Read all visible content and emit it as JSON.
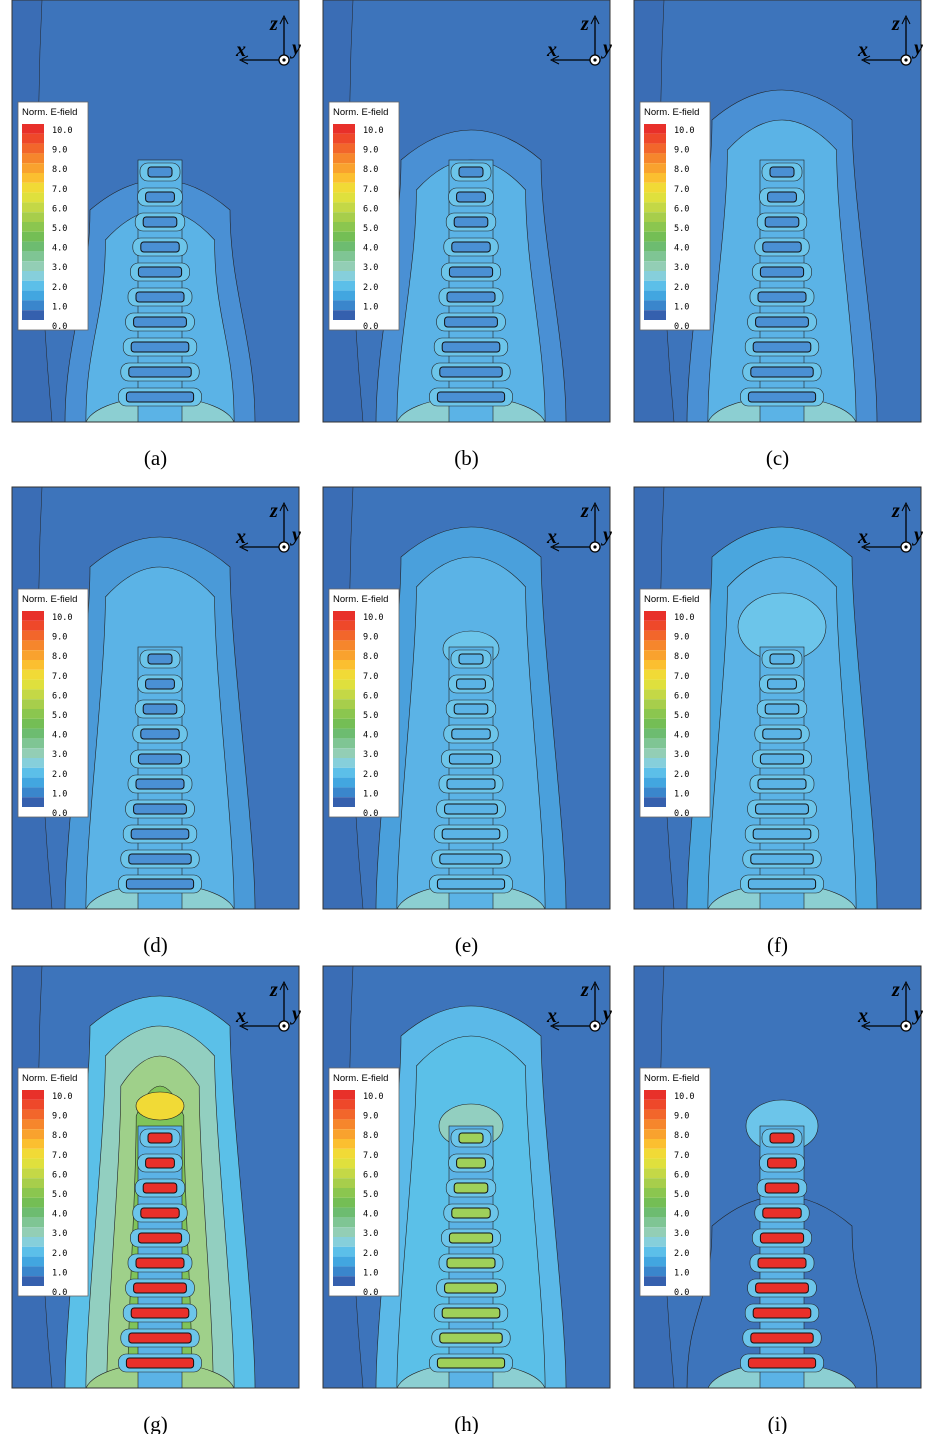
{
  "panels": [
    {
      "caption": "(a)"
    },
    {
      "caption": "(b)"
    },
    {
      "caption": "(c)"
    },
    {
      "caption": "(d)"
    },
    {
      "caption": "(e)"
    },
    {
      "caption": "(f)"
    },
    {
      "caption": "(g)"
    },
    {
      "caption": "(h)"
    },
    {
      "caption": "(i)"
    }
  ],
  "legend": {
    "title": "Norm. E-field",
    "ticks": [
      "10.0",
      "9.0",
      "8.0",
      "7.0",
      "6.0",
      "5.0",
      "4.0",
      "3.0",
      "2.0",
      "1.0",
      "0.0"
    ]
  },
  "axes": {
    "x": "x",
    "y": "y",
    "z": "z"
  }
}
